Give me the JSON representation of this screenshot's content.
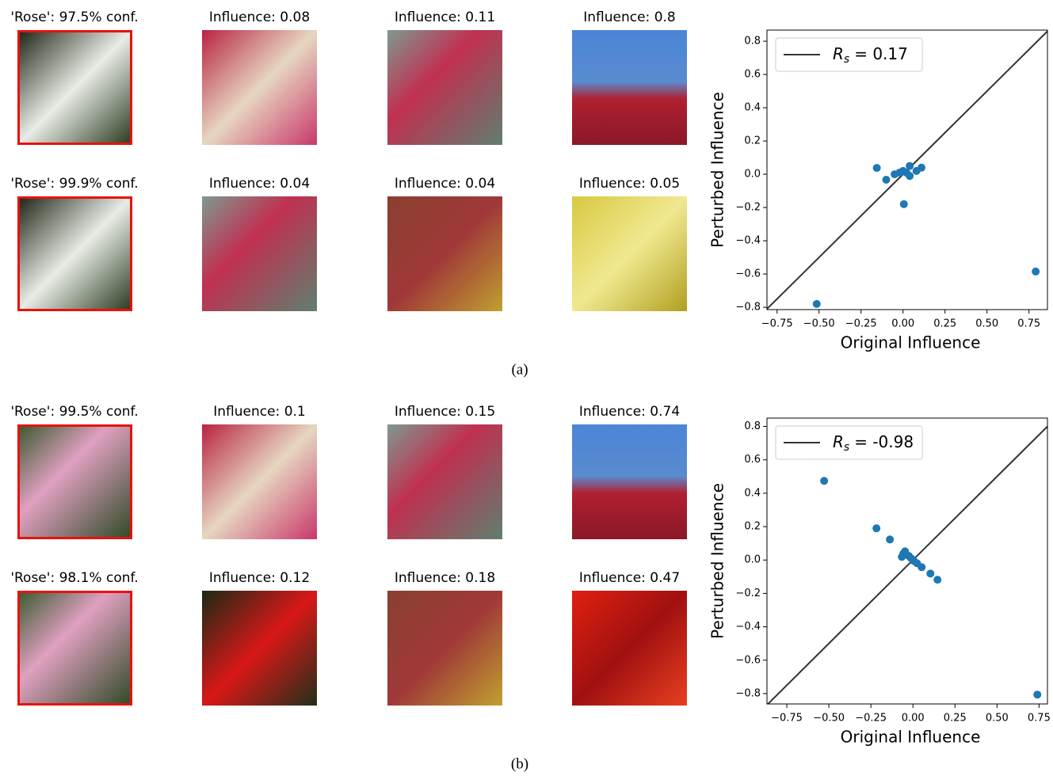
{
  "panels": [
    {
      "caption": "(a)",
      "rows": [
        {
          "query": "'Rose': 97.5% conf.",
          "neighbors": [
            "Influence: 0.08",
            "Influence: 0.11",
            "Influence: 0.8"
          ]
        },
        {
          "query": "'Rose': 99.9% conf.",
          "neighbors": [
            "Influence: 0.04",
            "Influence: 0.04",
            "Influence: 0.05"
          ]
        }
      ]
    },
    {
      "caption": "(b)",
      "rows": [
        {
          "query": "'Rose': 99.5% conf.",
          "neighbors": [
            "Influence: 0.1",
            "Influence: 0.15",
            "Influence: 0.74"
          ]
        },
        {
          "query": "'Rose': 98.1% conf.",
          "neighbors": [
            "Influence: 0.12",
            "Influence: 0.18",
            "Influence: 0.47"
          ]
        }
      ]
    }
  ],
  "chart_data": [
    {
      "type": "scatter",
      "x_label": "Original Influence",
      "y_label": "Perturbed Influence",
      "legend": {
        "symbol": "R",
        "subscript": "s",
        "text": "= 0.17"
      },
      "legend_loc": "upper left",
      "color": "#1f77b4",
      "line_color": "#333333",
      "x": [
        -0.514,
        -0.156,
        -0.1,
        0.005,
        0.79,
        -0.05,
        -0.02,
        0,
        0.02,
        0.04,
        0.08,
        0.11,
        0.04
      ],
      "values": [
        -0.78,
        0.038,
        -0.033,
        -0.18,
        -0.585,
        0,
        0.01,
        0.02,
        0.01,
        0.05,
        0.02,
        0.04,
        -0.01
      ],
      "xlim": [
        -0.81,
        0.86
      ],
      "ylim": [
        -0.814,
        0.867
      ],
      "xticks": [
        {
          "value": -0.75,
          "label": "−0.75"
        },
        {
          "value": -0.5,
          "label": "−0.50"
        },
        {
          "value": -0.25,
          "label": "−0.25"
        },
        {
          "value": 0,
          "label": "0.00"
        },
        0.25,
        {
          "value": 0.5,
          "label": "0.50"
        },
        0.75
      ],
      "yticks": [
        {
          "value": -0.8,
          "label": "−0.8"
        },
        {
          "value": -0.6,
          "label": "−0.6"
        },
        {
          "value": -0.4,
          "label": "−0.4"
        },
        {
          "value": -0.2,
          "label": "−0.2"
        },
        {
          "value": 0,
          "label": "0.0"
        },
        0.2,
        0.4,
        0.6,
        0.8
      ]
    },
    {
      "type": "scatter",
      "x_label": "Original Influence",
      "y_label": "Perturbed Influence",
      "legend": {
        "symbol": "R",
        "subscript": "s",
        "text": "= -0.98"
      },
      "legend_loc": "upper left",
      "color": "#1f77b4",
      "line_color": "#333333",
      "x": [
        -0.528,
        -0.217,
        -0.137,
        -0.057,
        -0.047,
        -0.024,
        -0.01,
        0.005,
        0.024,
        0.052,
        0.104,
        0.146,
        0.74,
        -0.066
      ],
      "values": [
        0.474,
        0.19,
        0.123,
        0.038,
        0.052,
        0.024,
        0.01,
        -0.005,
        -0.019,
        -0.043,
        -0.081,
        -0.118,
        -0.806,
        0.019
      ],
      "xlim": [
        -0.868,
        0.8
      ],
      "ylim": [
        -0.862,
        0.85
      ],
      "xticks": [
        {
          "value": -0.75,
          "label": "−0.75"
        },
        {
          "value": -0.5,
          "label": "−0.50"
        },
        {
          "value": -0.25,
          "label": "−0.25"
        },
        {
          "value": 0,
          "label": "0.00"
        },
        0.25,
        {
          "value": 0.5,
          "label": "0.50"
        },
        0.75
      ],
      "yticks": [
        {
          "value": -0.8,
          "label": "−0.8"
        },
        {
          "value": -0.6,
          "label": "−0.6"
        },
        {
          "value": -0.4,
          "label": "−0.4"
        },
        {
          "value": -0.2,
          "label": "−0.2"
        },
        {
          "value": 0,
          "label": "0.0"
        },
        0.2,
        0.4,
        0.6,
        0.8
      ]
    }
  ]
}
